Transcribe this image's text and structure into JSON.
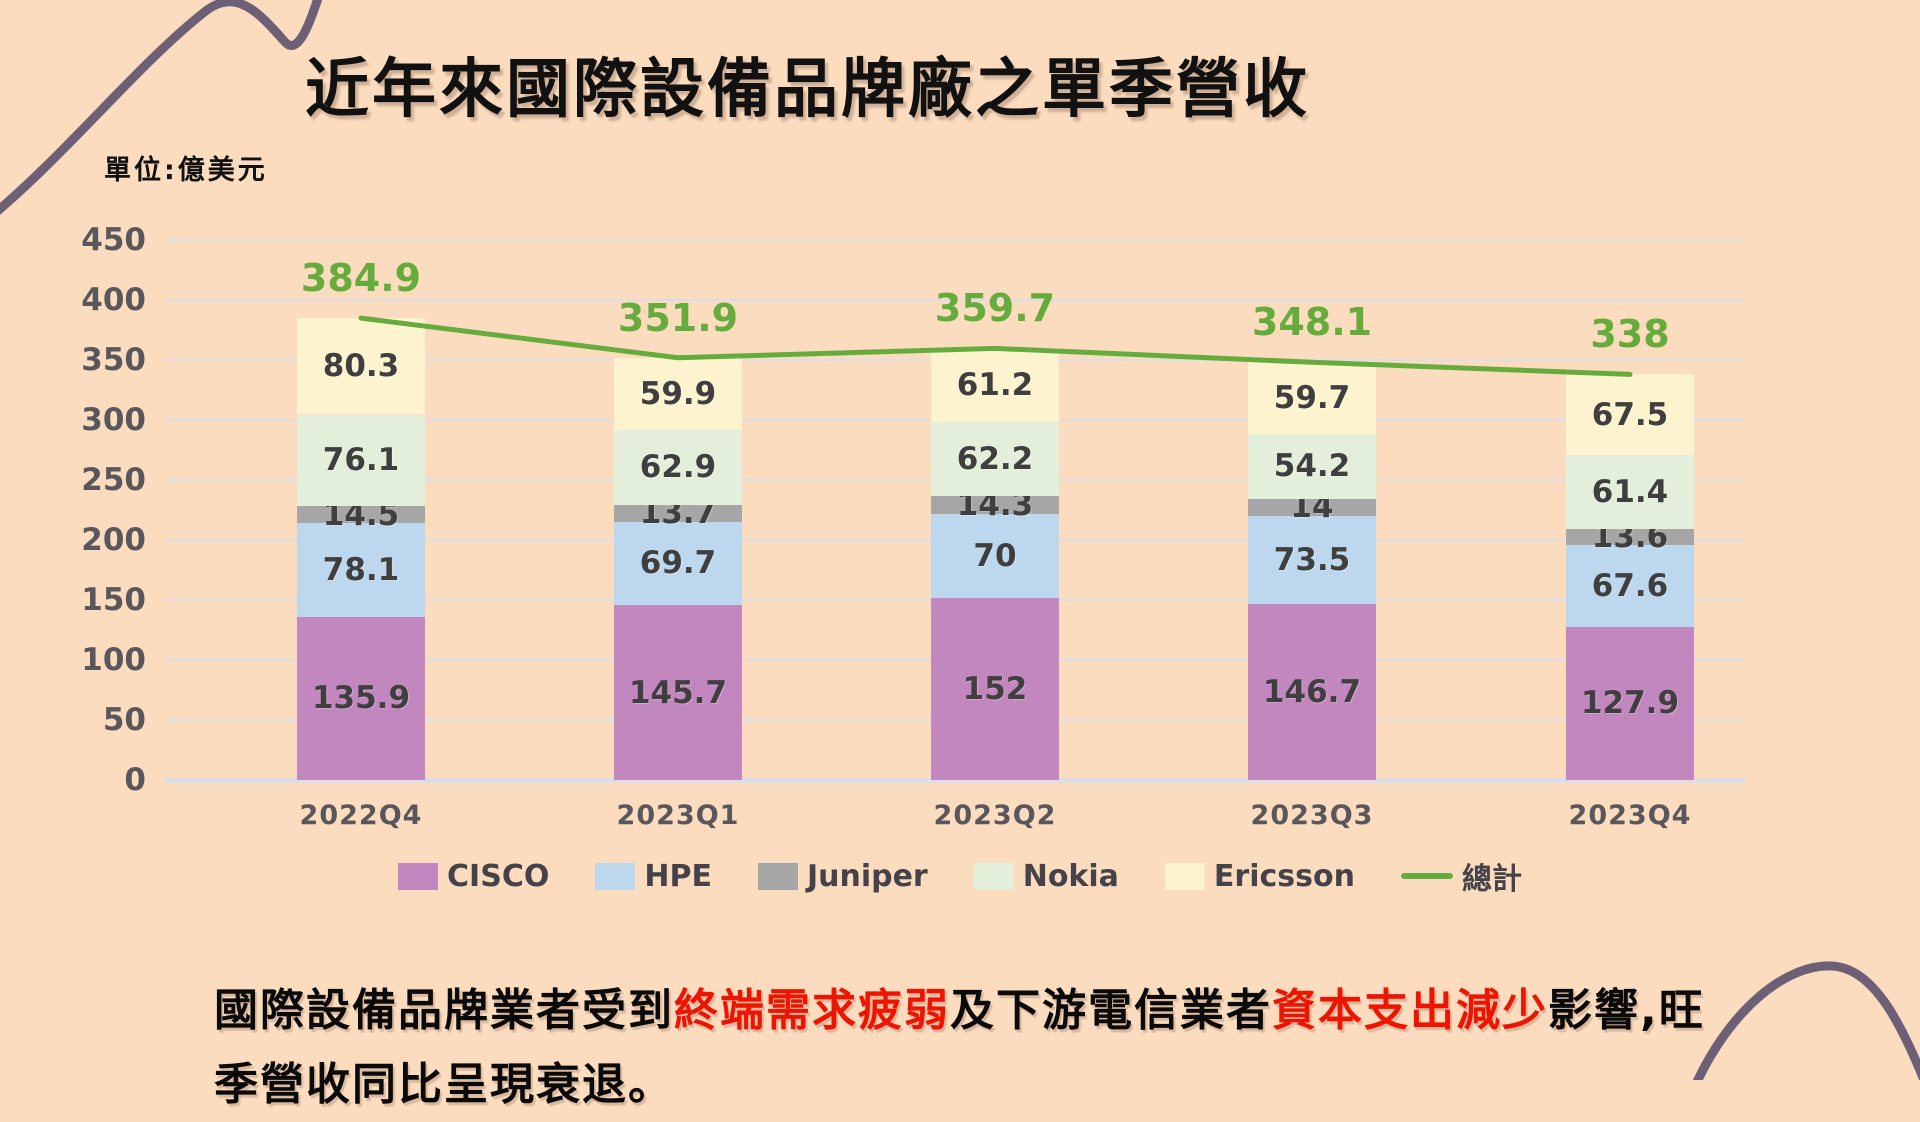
{
  "title": "近年來國際設備品牌廠之單季營收",
  "unit_label": "單位:億美元",
  "colors": {
    "background": "#FBDCBE",
    "decorative_wave": "#6C5F76",
    "grid": "#DBDEE7",
    "axis_text": "#59565C",
    "value_text": "#3F3F3F",
    "title_text": "#111111",
    "highlight_red": "#EE1400"
  },
  "chart_data": {
    "type": "bar",
    "stacked": true,
    "title": "近年來國際設備品牌廠之單季營收",
    "xlabel": "",
    "ylabel": "億美元",
    "ylim": [
      0,
      450
    ],
    "ytick_step": 50,
    "grid": true,
    "legend_position": "bottom",
    "categories": [
      "2022Q4",
      "2023Q1",
      "2023Q2",
      "2023Q3",
      "2023Q4"
    ],
    "series": [
      {
        "name": "CISCO",
        "color": "#C287BF",
        "values": [
          135.9,
          145.7,
          152,
          146.7,
          127.9
        ]
      },
      {
        "name": "HPE",
        "color": "#BDD7EE",
        "values": [
          78.1,
          69.7,
          70,
          73.5,
          67.6
        ]
      },
      {
        "name": "Juniper",
        "color": "#A6A6A6",
        "values": [
          14.5,
          13.7,
          14.3,
          14,
          13.6
        ]
      },
      {
        "name": "Nokia",
        "color": "#E3EFDB",
        "values": [
          76.1,
          62.9,
          62.2,
          54.2,
          61.4
        ]
      },
      {
        "name": "Ericsson",
        "color": "#FEF3CF",
        "values": [
          80.3,
          59.9,
          61.2,
          59.7,
          67.5
        ]
      }
    ],
    "line_series": {
      "name": "總計",
      "color": "#66AC3C",
      "values": [
        384.9,
        351.9,
        359.7,
        348.1,
        338
      ]
    }
  },
  "footnote": {
    "segments": [
      {
        "text": "國際設備品牌業者受到",
        "highlight": false
      },
      {
        "text": "終端需求疲弱",
        "highlight": true
      },
      {
        "text": "及下游電信業者",
        "highlight": false
      },
      {
        "text": "資本支出減少",
        "highlight": true
      },
      {
        "text": "影響,旺",
        "highlight": false
      },
      {
        "br": true
      },
      {
        "text": "季營收同比呈現衰退。",
        "highlight": false
      }
    ]
  }
}
